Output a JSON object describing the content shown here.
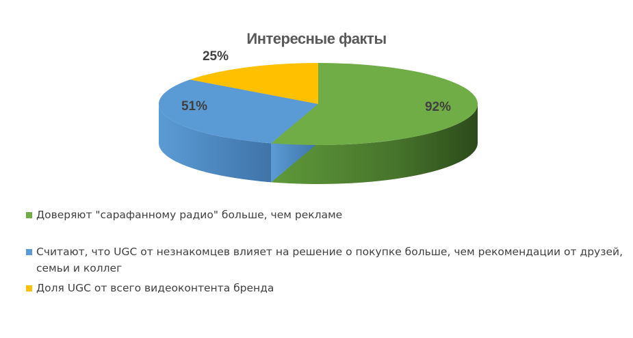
{
  "chart_data": {
    "type": "pie",
    "title": "Интересные факты",
    "slices": [
      {
        "name": "Доверяют \"сарафанному радио\" больше, чем рекламе",
        "value": 92,
        "label": "92%",
        "color": "#70ad47"
      },
      {
        "name": "Считают, что UGC  от незнакомцев влияет на решение о покупке больше, чем рекомендации от друзей, семьи и коллег",
        "value": 51,
        "label": "51%",
        "color": "#5b9bd5"
      },
      {
        "name": "Доля UGC от всего видеоконтента бренда",
        "value": 25,
        "label": "25%",
        "color": "#ffc000"
      }
    ],
    "legend_position": "bottom"
  }
}
